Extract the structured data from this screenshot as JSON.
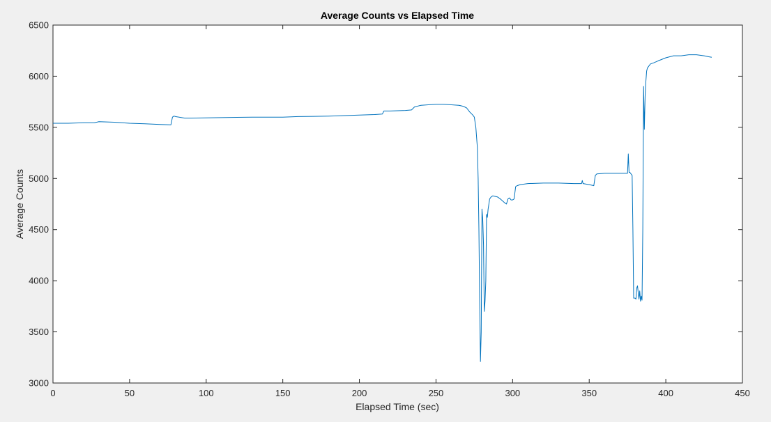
{
  "chart_data": {
    "type": "line",
    "title": "Average Counts vs Elapsed Time",
    "xlabel": "Elapsed Time (sec)",
    "ylabel": "Average Counts",
    "xlim": [
      0,
      450
    ],
    "ylim": [
      3000,
      6500
    ],
    "xticks": [
      0,
      50,
      100,
      150,
      200,
      250,
      300,
      350,
      400,
      450
    ],
    "yticks": [
      3000,
      3500,
      4000,
      4500,
      5000,
      5500,
      6000,
      6500
    ],
    "grid": false,
    "line_color": "#0072BD",
    "series": [
      {
        "x": [
          0,
          10,
          20,
          27,
          30,
          40,
          50,
          60,
          70,
          77,
          78,
          79,
          80,
          84,
          86,
          90,
          100,
          110,
          120,
          130,
          140,
          150,
          160,
          170,
          180,
          190,
          200,
          210,
          215,
          216,
          220,
          230,
          234,
          236,
          240,
          250,
          255,
          260,
          265,
          268,
          270,
          272,
          274,
          275,
          276,
          277,
          277.5,
          278,
          278.5,
          279,
          279.5,
          280,
          280.5,
          281,
          281.5,
          282,
          282.5,
          283,
          283.5,
          284,
          285,
          286,
          287,
          290,
          292,
          295,
          296,
          297,
          298,
          299,
          300,
          301,
          302,
          303,
          305,
          310,
          320,
          330,
          340,
          345,
          345.5,
          346,
          350,
          353,
          354,
          355,
          360,
          365,
          370,
          374,
          375,
          375.5,
          376,
          376.5,
          377,
          378,
          378.5,
          379,
          380,
          380.5,
          381,
          381.5,
          382,
          382.5,
          383,
          383.5,
          384,
          384.5,
          385,
          385.5,
          386,
          386.5,
          387,
          387.5,
          388,
          389,
          390,
          392,
          395,
          400,
          405,
          410,
          415,
          420,
          425,
          428,
          430
        ],
        "y": [
          5540,
          5540,
          5545,
          5545,
          5555,
          5550,
          5540,
          5535,
          5528,
          5525,
          5600,
          5610,
          5605,
          5595,
          5590,
          5590,
          5592,
          5595,
          5598,
          5600,
          5600,
          5600,
          5605,
          5607,
          5610,
          5615,
          5620,
          5625,
          5630,
          5660,
          5660,
          5665,
          5670,
          5700,
          5715,
          5725,
          5725,
          5720,
          5715,
          5705,
          5690,
          5650,
          5620,
          5600,
          5500,
          5300,
          5000,
          4500,
          3800,
          3210,
          3500,
          4700,
          4600,
          4350,
          3700,
          3800,
          4000,
          4650,
          4620,
          4700,
          4800,
          4820,
          4830,
          4820,
          4800,
          4760,
          4750,
          4800,
          4810,
          4790,
          4790,
          4800,
          4920,
          4930,
          4940,
          4950,
          4955,
          4955,
          4950,
          4950,
          4980,
          4950,
          4940,
          4930,
          5030,
          5045,
          5050,
          5050,
          5050,
          5050,
          5050,
          5240,
          5060,
          5060,
          5050,
          5030,
          4500,
          3830,
          3830,
          3820,
          3930,
          3950,
          3880,
          3820,
          3900,
          3800,
          3850,
          3810,
          4500,
          5900,
          5480,
          5800,
          5950,
          6050,
          6080,
          6100,
          6120,
          6130,
          6150,
          6180,
          6200,
          6200,
          6210,
          6210,
          6200,
          6190,
          6185
        ]
      }
    ]
  }
}
